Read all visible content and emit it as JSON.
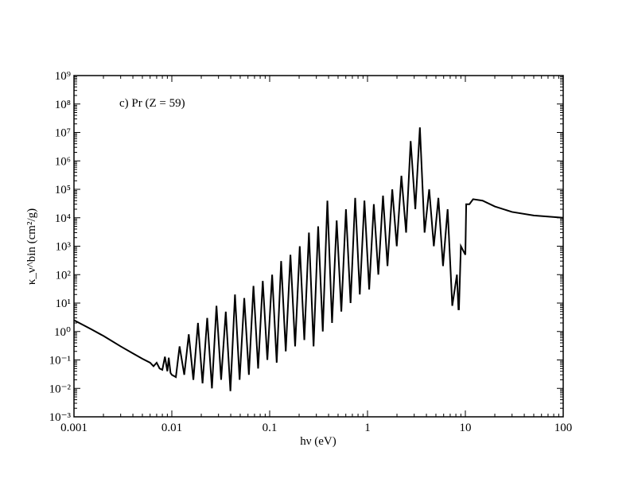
{
  "chart_data": {
    "type": "line",
    "annotation": "c) Pr (Z = 59)",
    "x_label": "hν (eV)",
    "y_label": "κ_ν^bin (cm²/g)",
    "xscale": "log",
    "yscale": "log",
    "xlim": [
      0.001,
      100
    ],
    "xticks": [
      0.001,
      0.01,
      0.1,
      1,
      10,
      100
    ],
    "ylim": [
      0.001,
      1000000000
    ],
    "yticks": [
      {
        "value": 0.001,
        "label": "10⁻³"
      },
      {
        "value": 0.01,
        "label": "10⁻²"
      },
      {
        "value": 0.1,
        "label": "10⁻¹"
      },
      {
        "value": 1,
        "label": "10⁰"
      },
      {
        "value": 10,
        "label": "10¹"
      },
      {
        "value": 100,
        "label": "10²"
      },
      {
        "value": 1000,
        "label": "10³"
      },
      {
        "value": 10000,
        "label": "10⁴"
      },
      {
        "value": 100000,
        "label": "10⁵"
      },
      {
        "value": 1000000,
        "label": "10⁶"
      },
      {
        "value": 10000000,
        "label": "10⁷"
      },
      {
        "value": 100000000,
        "label": "10⁸"
      },
      {
        "value": 1000000000,
        "label": "10⁹"
      }
    ],
    "color": "#000000",
    "x": [
      0.001,
      0.0015,
      0.002,
      0.003,
      0.004,
      0.005,
      0.006,
      0.0065,
      0.007,
      0.0075,
      0.008,
      0.0085,
      0.009,
      0.0093,
      0.0097,
      0.01,
      0.011,
      0.012,
      0.0134,
      0.0149,
      0.0166,
      0.0185,
      0.0206,
      0.023,
      0.0257,
      0.0286,
      0.0319,
      0.0356,
      0.0397,
      0.0442,
      0.0493,
      0.055,
      0.0613,
      0.0683,
      0.0762,
      0.085,
      0.0947,
      0.106,
      0.118,
      0.131,
      0.146,
      0.163,
      0.182,
      0.203,
      0.226,
      0.252,
      0.281,
      0.313,
      0.349,
      0.389,
      0.434,
      0.484,
      0.54,
      0.602,
      0.671,
      0.748,
      0.834,
      0.93,
      1.04,
      1.16,
      1.29,
      1.44,
      1.6,
      1.79,
      1.99,
      2.22,
      2.48,
      2.76,
      3.08,
      3.43,
      3.83,
      4.27,
      4.76,
      5.3,
      5.91,
      6.59,
      7.35,
      8.2,
      8.5,
      8.6,
      9,
      10,
      10.2,
      11,
      12,
      15,
      20,
      30,
      50,
      100
    ],
    "values": [
      2.5,
      1.2,
      0.7,
      0.3,
      0.17,
      0.11,
      0.08,
      0.06,
      0.08,
      0.05,
      0.045,
      0.13,
      0.04,
      0.12,
      0.035,
      0.03,
      0.025,
      0.3,
      0.03,
      0.8,
      0.02,
      2,
      0.015,
      3,
      0.01,
      8,
      0.02,
      5,
      0.008,
      20,
      0.02,
      15,
      0.03,
      40,
      0.05,
      60,
      0.1,
      100,
      0.08,
      300,
      0.2,
      500,
      0.3,
      1000,
      0.5,
      3000,
      0.3,
      5000,
      1,
      40000,
      2,
      8000,
      5,
      20000,
      10,
      50000,
      20,
      40000,
      30,
      30000,
      100,
      60000,
      200,
      100000,
      1000,
      300000,
      3000,
      5000000,
      20000,
      15000000,
      3000,
      100000,
      1000,
      50000,
      200,
      20000,
      8,
      100,
      6,
      6,
      1000,
      500,
      30000,
      30000,
      45000,
      40000,
      25000,
      16000,
      12000,
      10000
    ]
  }
}
